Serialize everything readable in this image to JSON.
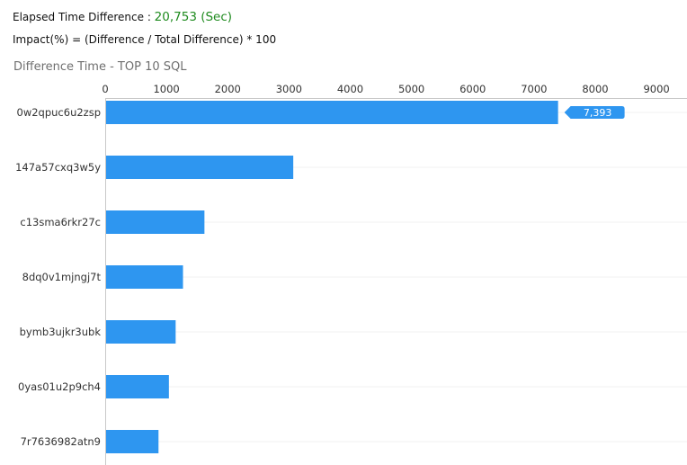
{
  "summary": {
    "elapsed_label": "Elapsed Time Difference : ",
    "elapsed_value": "20,753 (Sec)",
    "impact_formula": "Impact(%) = (Difference / Total Difference) * 100"
  },
  "chart_data": {
    "type": "bar",
    "orientation": "horizontal",
    "title": "Difference Time - TOP 10 SQL",
    "xlabel": "",
    "ylabel": "",
    "x_axis_position": "top",
    "xlim": [
      0,
      9500
    ],
    "xticks": [
      0,
      1000,
      2000,
      3000,
      4000,
      5000,
      6000,
      7000,
      8000,
      9000
    ],
    "grid": true,
    "categories": [
      "0w2qpuc6u2zsp",
      "147a57cxq3w5y",
      "c13sma6rkr27c",
      "8dq0v1mjngj7t",
      "bymb3ujkr3ubk",
      "0yas01u2p9ch4",
      "7r7636982atn9"
    ],
    "values": [
      7393,
      3070,
      1620,
      1270,
      1150,
      1040,
      870
    ],
    "bar_color": "#2e96f0",
    "tooltip": {
      "category_index": 0,
      "text": "7,393"
    }
  }
}
